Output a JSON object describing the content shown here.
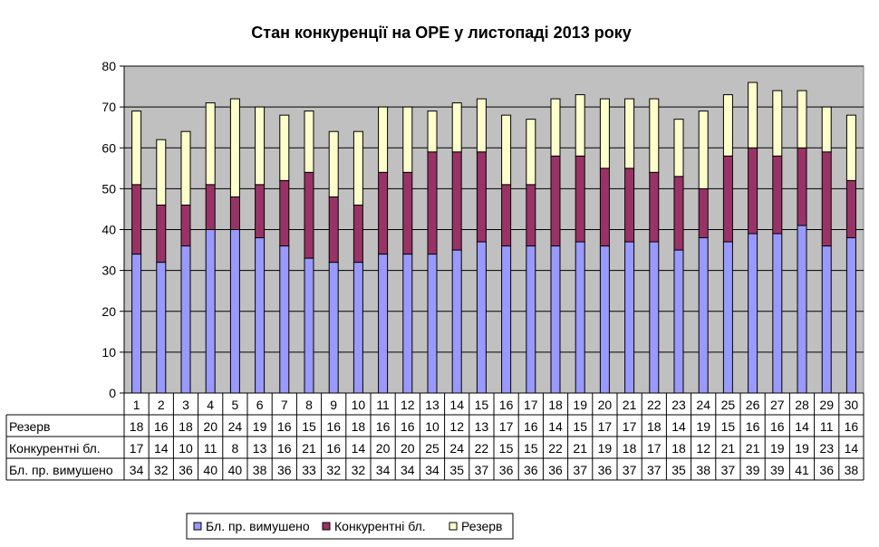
{
  "chart_data": {
    "type": "bar",
    "stacked": true,
    "title": "Стан конкуренції на ОРЕ  у листопаді 2013 року",
    "xlabel": "",
    "ylabel": "",
    "ylim": [
      0,
      80
    ],
    "yticks": [
      0,
      10,
      20,
      30,
      40,
      50,
      60,
      70,
      80
    ],
    "grid": true,
    "legend_position": "bottom",
    "plot_background": "#c0c0c0",
    "categories": [
      "1",
      "2",
      "3",
      "4",
      "5",
      "6",
      "7",
      "8",
      "9",
      "10",
      "11",
      "12",
      "13",
      "14",
      "15",
      "16",
      "17",
      "18",
      "19",
      "20",
      "21",
      "22",
      "23",
      "24",
      "25",
      "26",
      "27",
      "28",
      "29",
      "30"
    ],
    "series": [
      {
        "name": "Бл. пр. вимушено",
        "color": "#9999ff",
        "values": [
          34,
          32,
          36,
          40,
          40,
          38,
          36,
          33,
          32,
          32,
          34,
          34,
          34,
          35,
          37,
          36,
          36,
          36,
          37,
          36,
          37,
          37,
          35,
          38,
          37,
          39,
          39,
          41,
          36,
          38
        ]
      },
      {
        "name": "Конкурентні бл.",
        "color": "#993366",
        "values": [
          17,
          14,
          10,
          11,
          8,
          13,
          16,
          21,
          16,
          14,
          20,
          20,
          25,
          24,
          22,
          15,
          15,
          22,
          21,
          19,
          18,
          17,
          18,
          12,
          21,
          21,
          19,
          19,
          23,
          14
        ]
      },
      {
        "name": "Резерв",
        "color": "#ffffcc",
        "values": [
          18,
          16,
          18,
          20,
          24,
          19,
          16,
          15,
          16,
          18,
          16,
          16,
          10,
          12,
          13,
          17,
          16,
          14,
          15,
          17,
          17,
          18,
          14,
          19,
          15,
          16,
          16,
          14,
          11,
          16
        ]
      }
    ],
    "table_rows_order": [
      "Резерв",
      "Конкурентні бл.",
      "Бл. пр. вимушено"
    ]
  }
}
